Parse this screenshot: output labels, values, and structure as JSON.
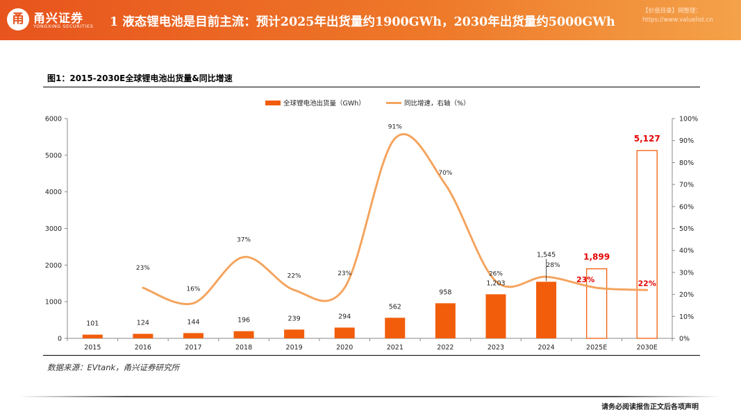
{
  "header": {
    "logo_mark": "甬",
    "logo_cn": "甬兴证券",
    "logo_en": "YONGXING SECURITIES",
    "title": "1 液态锂电池是目前主流：预计2025年出货量约1900GWh，2030年出货量约5000GWh",
    "watermark_line1": "【价值目录】网整理：",
    "watermark_line2": "https://www.valuelist.cn"
  },
  "figure_title": "图1：2015-2030E全球锂电池出货量&同比增速",
  "source": "数据来源：EVtank，甬兴证券研究所",
  "footer": "请务必阅读报告正文后各项声明",
  "colors": {
    "bar": "#f25d0b",
    "bar_forecast_stroke": "#f25d0b",
    "line": "#f4a45e",
    "highlight_text": "#e30000"
  },
  "chart_data": {
    "type": "bar+line",
    "title": "2015-2030E全球锂电池出货量&同比增速",
    "categories": [
      "2015",
      "2016",
      "2017",
      "2018",
      "2019",
      "2020",
      "2021",
      "2022",
      "2023",
      "2024",
      "2025E",
      "2030E"
    ],
    "series": [
      {
        "name": "全球锂电池出货量（GWh）",
        "type": "bar",
        "axis": "left",
        "values": [
          101,
          124,
          144,
          196,
          239,
          294,
          562,
          958,
          1203,
          1545,
          1899,
          5127
        ],
        "labels": [
          "101",
          "124",
          "144",
          "196",
          "239",
          "294",
          "562",
          "958",
          "1,203",
          "1,545",
          "1,899",
          "5,127"
        ],
        "forecast": [
          false,
          false,
          false,
          false,
          false,
          false,
          false,
          false,
          false,
          false,
          true,
          true
        ]
      },
      {
        "name": "同比增速，右轴（%）",
        "type": "line",
        "axis": "right",
        "values": [
          null,
          23,
          16,
          37,
          22,
          23,
          91,
          70,
          26,
          28,
          23,
          22
        ],
        "labels": [
          "",
          "23%",
          "16%",
          "37%",
          "22%",
          "23%",
          "91%",
          "70%",
          "26%",
          "28%",
          "23%",
          "22%"
        ],
        "highlight": [
          false,
          false,
          false,
          false,
          false,
          false,
          false,
          false,
          false,
          false,
          true,
          true
        ]
      }
    ],
    "y_left": {
      "min": 0,
      "max": 6000,
      "ticks": [
        0,
        1000,
        2000,
        3000,
        4000,
        5000,
        6000
      ]
    },
    "y_right": {
      "min": 0,
      "max": 100,
      "ticks": [
        "0%",
        "10%",
        "20%",
        "30%",
        "40%",
        "50%",
        "60%",
        "70%",
        "80%",
        "90%",
        "100%"
      ]
    },
    "legend_position": "top-center",
    "grid": false
  }
}
